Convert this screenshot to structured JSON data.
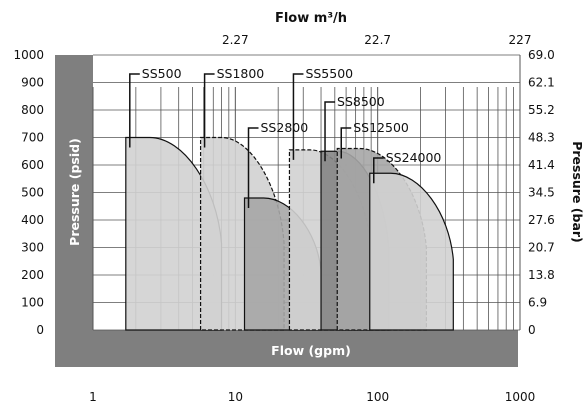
{
  "chart_data": {
    "type": "area",
    "title": "Flow m³/h",
    "xlabel": "Flow (gpm)",
    "ylabel": "Pressure (psid)",
    "y2label": "Pressure (bar)",
    "x_scale": "log",
    "xlim": [
      1,
      1000
    ],
    "ylim": [
      0,
      1000
    ],
    "x_ticks": [
      "1",
      "10",
      "100",
      "1000"
    ],
    "x_top_ticks": [
      "2.27",
      "22.7",
      "227"
    ],
    "y_ticks": [
      "0",
      "100",
      "200",
      "300",
      "400",
      "500",
      "600",
      "700",
      "800",
      "900",
      "1000"
    ],
    "y2_ticks": [
      "0",
      "6.9",
      "13.8",
      "20.7",
      "27.6",
      "34.5",
      "41.4",
      "48.3",
      "55.2",
      "62.1",
      "69.0"
    ],
    "grid": true,
    "colors": {
      "frame": "#7f7f7f",
      "light_fill": "#d2d2d2",
      "mid_fill": "#a6a6a6",
      "dark_fill": "#858585",
      "darker_fill": "#6e6e6e",
      "axis_text": "#ffffff"
    },
    "series": [
      {
        "name": "SS500",
        "x_min": 1.7,
        "x_max": 8.0,
        "max_pressure": 700
      },
      {
        "name": "SS1800",
        "x_min": 5.7,
        "x_max": 22.0,
        "max_pressure": 700
      },
      {
        "name": "SS2800",
        "x_min": 11.6,
        "x_max": 40.0,
        "max_pressure": 480
      },
      {
        "name": "SS5500",
        "x_min": 24.0,
        "x_max": 90.0,
        "max_pressure": 655
      },
      {
        "name": "SS8500",
        "x_min": 40.0,
        "x_max": 120.0,
        "max_pressure": 650
      },
      {
        "name": "SS12500",
        "x_min": 52.0,
        "x_max": 220.0,
        "max_pressure": 660
      },
      {
        "name": "SS24000",
        "x_min": 88.0,
        "x_max": 340.0,
        "max_pressure": 570
      }
    ]
  }
}
